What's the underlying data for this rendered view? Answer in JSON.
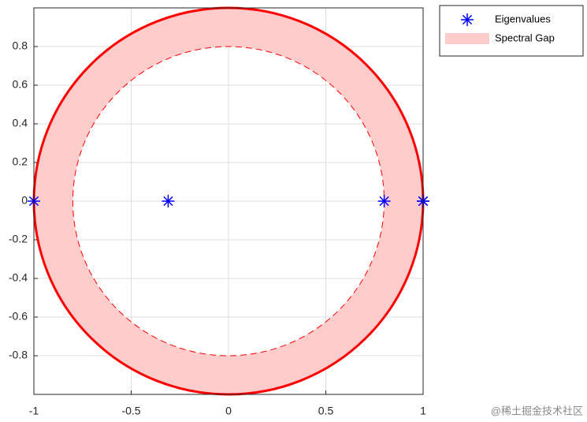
{
  "chart_data": {
    "type": "scatter",
    "xlim": [
      -1,
      1
    ],
    "ylim": [
      -1,
      1
    ],
    "xticks": [
      -1,
      -0.5,
      0,
      0.5,
      1
    ],
    "yticks": [
      -0.8,
      -0.6,
      -0.4,
      -0.2,
      0,
      0.2,
      0.4,
      0.6,
      0.8
    ],
    "grid": true,
    "legend": "outside-right",
    "series": [
      {
        "name": "Eigenvalues",
        "color": "#0000ff",
        "marker": "asterisk",
        "x": [
          -1,
          -0.31,
          0.8,
          1,
          1
        ],
        "values": [
          0,
          0,
          0,
          0,
          0
        ]
      },
      {
        "name": "Spectral Gap",
        "color": "#ffcccc",
        "edge_color": "#ff0000",
        "kind": "annulus",
        "inner_radius": 0.8,
        "outer_radius": 1
      }
    ],
    "watermark": "@稀土掘金技术社区"
  }
}
